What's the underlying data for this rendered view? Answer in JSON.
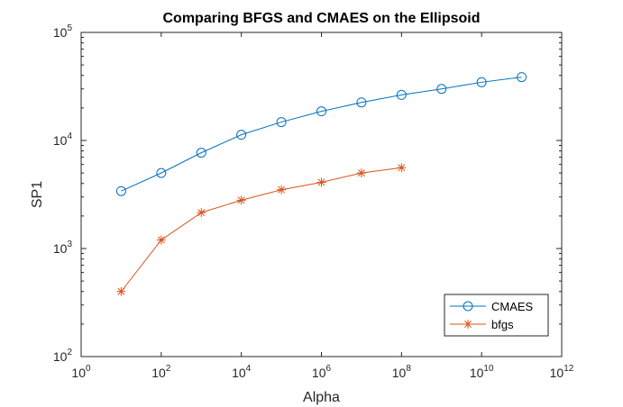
{
  "chart_data": {
    "type": "line",
    "title": "Comparing BFGS and CMAES on the Ellipsoid",
    "xlabel": "Alpha",
    "ylabel": "SP1",
    "xscale": "log",
    "yscale": "log",
    "xlim": [
      1,
      1000000000000
    ],
    "ylim": [
      100,
      100000
    ],
    "x_ticks": [
      {
        "value": 1,
        "base": "10",
        "exp": "0"
      },
      {
        "value": 100,
        "base": "10",
        "exp": "2"
      },
      {
        "value": 10000,
        "base": "10",
        "exp": "4"
      },
      {
        "value": 1000000,
        "base": "10",
        "exp": "6"
      },
      {
        "value": 100000000,
        "base": "10",
        "exp": "8"
      },
      {
        "value": 10000000000,
        "base": "10",
        "exp": "10"
      },
      {
        "value": 1000000000000,
        "base": "10",
        "exp": "12"
      }
    ],
    "y_ticks": [
      {
        "value": 100,
        "base": "10",
        "exp": "2"
      },
      {
        "value": 1000,
        "base": "10",
        "exp": "3"
      },
      {
        "value": 10000,
        "base": "10",
        "exp": "4"
      },
      {
        "value": 100000,
        "base": "10",
        "exp": "5"
      }
    ],
    "grid": false,
    "legend_position": "bottom-right",
    "series": [
      {
        "name": "CMAES",
        "color": "#0072BD",
        "marker": "circle",
        "x": [
          10,
          100,
          1000,
          10000,
          100000,
          1000000,
          10000000,
          100000000,
          1000000000,
          10000000000,
          100000000000
        ],
        "y": [
          3400,
          5000,
          7700,
          11300,
          14800,
          18600,
          22500,
          26400,
          30000,
          34600,
          38600
        ]
      },
      {
        "name": "bfgs",
        "color": "#D95319",
        "marker": "asterisk",
        "x": [
          10,
          100,
          1000,
          10000,
          100000,
          1000000,
          10000000,
          100000000
        ],
        "y": [
          400,
          1200,
          2150,
          2800,
          3500,
          4100,
          5000,
          5600
        ]
      }
    ]
  }
}
